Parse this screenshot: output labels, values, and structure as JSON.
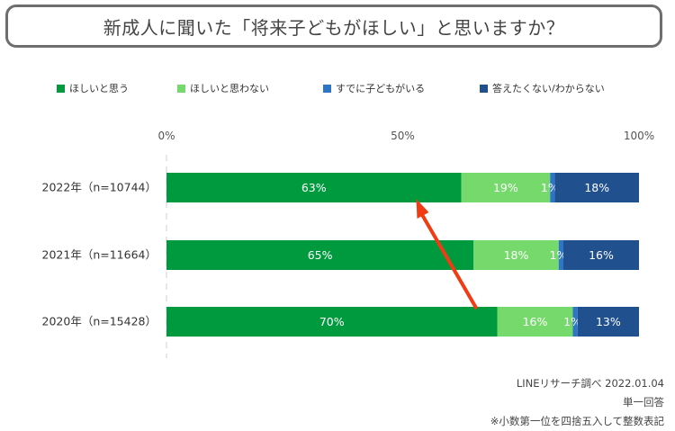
{
  "title": "新成人に聞いた「将来子どもがほしい」と思いますか？",
  "chart_data": {
    "type": "bar",
    "orientation": "horizontal",
    "stacked": true,
    "categories": [
      "2022年（n=10744）",
      "2021年（n=11664）",
      "2020年（n=15428）"
    ],
    "series": [
      {
        "name": "ほしいと思う",
        "color": "#009a3e",
        "values": [
          63,
          65,
          70
        ],
        "labels": [
          "63%",
          "65%",
          "70%"
        ]
      },
      {
        "name": "ほしいと思わない",
        "color": "#76d96c",
        "values": [
          19,
          18,
          16
        ],
        "labels": [
          "19%",
          "18%",
          "16%"
        ]
      },
      {
        "name": "すでに子どもがいる",
        "color": "#2e75c6",
        "values": [
          1,
          1,
          1
        ],
        "labels": [
          "1%",
          "1%",
          "1%"
        ]
      },
      {
        "name": "答えたくない/わからない",
        "color": "#21508f",
        "values": [
          18,
          16,
          13
        ],
        "labels": [
          "18%",
          "16%",
          "13%"
        ]
      }
    ],
    "xlim": [
      0,
      100
    ],
    "xticks": [
      "0%",
      "50%",
      "100%"
    ],
    "legend_position": "top",
    "annotation": "red arrow from 2020 bar boundary up to 2022 bar boundary",
    "arrow_color": "#f03c14"
  },
  "notes": [
    "LINEリサーチ調べ 2022.01.04",
    "単一回答",
    "※小数第一位を四捨五入して整数表記"
  ]
}
